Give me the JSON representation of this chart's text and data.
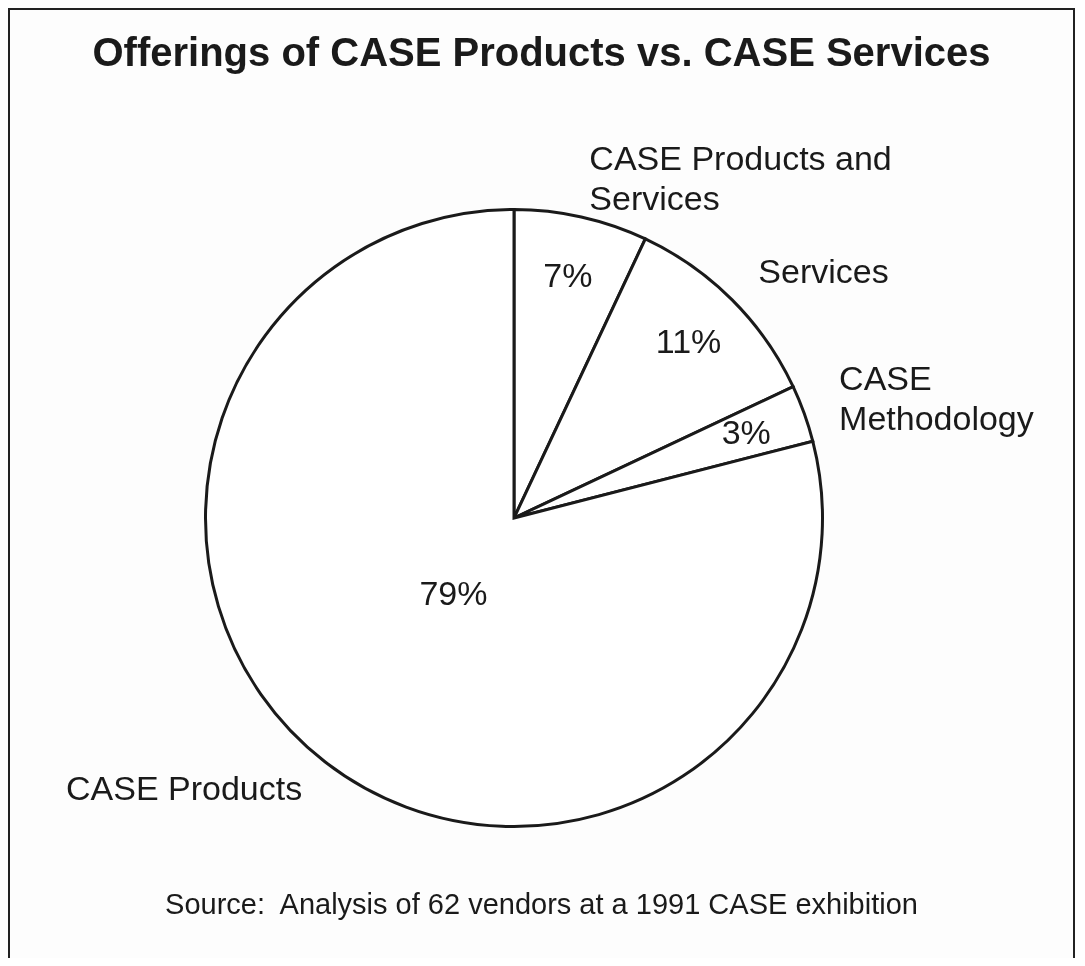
{
  "chart_data": {
    "type": "pie",
    "title": "Offerings of CASE Products vs. CASE Services",
    "categories": [
      "CASE Products and Services",
      "Services",
      "CASE Methodology",
      "CASE Products"
    ],
    "values": [
      7,
      11,
      3,
      79
    ],
    "colors": [
      "#ffffff",
      "#ffffff",
      "#ffffff",
      "#ffffff"
    ],
    "value_labels": [
      "7%",
      "11%",
      "3%",
      "79%"
    ],
    "annotations": [
      "Source:  Analysis of 62 vendors at a 1991 CASE exhibition"
    ]
  }
}
